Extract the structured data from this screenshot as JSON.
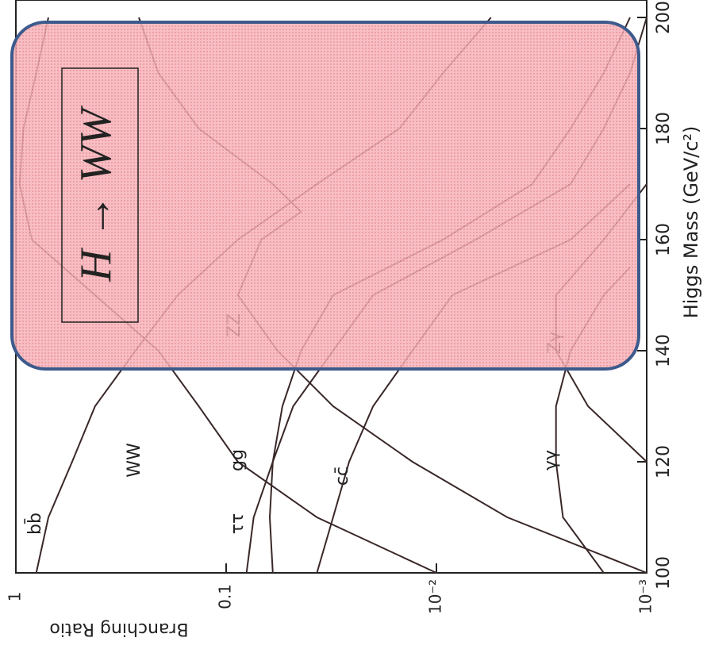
{
  "chart_data": {
    "type": "line",
    "title": "H → WW",
    "x_label": "Higgs Mass (GeV/c²)",
    "y_label": "Branching Ratio",
    "xlim": [
      100,
      200
    ],
    "xticks": [
      100,
      120,
      140,
      160,
      180,
      200
    ],
    "ylim": [
      0.001,
      1
    ],
    "log_y": true,
    "yticks": [
      1,
      0.1,
      {
        "value": 0.01,
        "label": "10⁻²"
      },
      {
        "value": 0.001,
        "label": "10⁻³"
      }
    ],
    "series": [
      {
        "name": "bb̄",
        "color": "#3a2828",
        "x": [
          100,
          110,
          120,
          130,
          140,
          150,
          160,
          170,
          180,
          190,
          200
        ],
        "values": [
          0.8,
          0.7,
          0.54,
          0.42,
          0.27,
          0.17,
          0.088,
          0.037,
          0.015,
          0.0093,
          0.0055
        ]
      },
      {
        "name": "WW",
        "color": "#3a2828",
        "x": [
          100,
          110,
          120,
          130,
          140,
          150,
          160,
          170,
          180,
          190,
          200
        ],
        "values": [
          0.01,
          0.037,
          0.088,
          0.135,
          0.21,
          0.42,
          0.84,
          0.96,
          0.92,
          0.8,
          0.7
        ]
      },
      {
        "name": "ττ",
        "color": "#3a2828",
        "x": [
          100,
          110,
          120,
          130,
          140,
          150,
          160,
          170,
          180,
          190,
          200
        ],
        "values": [
          0.08,
          0.074,
          0.06,
          0.048,
          0.031,
          0.02,
          0.0065,
          0.0023,
          0.0016,
          0.0012,
          0.001
        ]
      },
      {
        "name": "gg",
        "color": "#3a2828",
        "x": [
          100,
          110,
          120,
          130,
          140,
          150,
          160,
          170,
          180,
          190,
          200
        ],
        "values": [
          0.06,
          0.062,
          0.06,
          0.054,
          0.044,
          0.031,
          0.0093,
          0.0035,
          0.0023,
          0.0016,
          0.0012
        ]
      },
      {
        "name": "cc̄",
        "color": "#3a2828",
        "x": [
          100,
          110,
          120,
          130,
          140,
          150,
          160,
          170
        ],
        "values": [
          0.037,
          0.031,
          0.026,
          0.02,
          0.013,
          0.0084,
          0.0023,
          0.0012
        ]
      },
      {
        "name": "ZZ",
        "color": "#3a2828",
        "x": [
          100,
          110,
          120,
          130,
          140,
          150,
          160,
          165,
          170,
          180,
          190,
          200
        ],
        "values": [
          0.001,
          0.0046,
          0.013,
          0.031,
          0.057,
          0.088,
          0.068,
          0.044,
          0.06,
          0.135,
          0.21,
          0.26
        ]
      },
      {
        "name": "γγ",
        "color": "#3a2828",
        "x": [
          100,
          110,
          120,
          130,
          140,
          150,
          155
        ],
        "values": [
          0.0016,
          0.0025,
          0.0027,
          0.0027,
          0.0023,
          0.0016,
          0.0012
        ]
      },
      {
        "name": "Zγ",
        "color": "#3a2828",
        "x": [
          120,
          130,
          140,
          150,
          160,
          170
        ],
        "values": [
          0.001,
          0.0019,
          0.0027,
          0.0027,
          0.0016,
          0.001
        ]
      }
    ]
  }
}
